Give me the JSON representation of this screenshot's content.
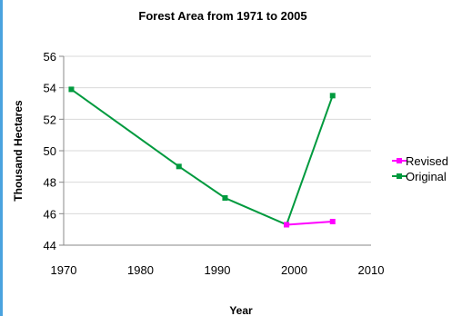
{
  "chart_data": {
    "type": "line",
    "title": "Forest Area from 1971 to 2005",
    "xlabel": "Year",
    "ylabel": "Thousand Hectares",
    "xlim": [
      1970,
      2010
    ],
    "ylim": [
      44,
      56
    ],
    "xticks": [
      1970,
      1980,
      1990,
      2000,
      2010
    ],
    "yticks": [
      44,
      46,
      48,
      50,
      52,
      54,
      56
    ],
    "grid": "horizontal",
    "legend_position": "right",
    "series": [
      {
        "name": "Revised",
        "color": "#ff00ff",
        "marker": "square",
        "x": [
          1999,
          2005
        ],
        "y": [
          45.3,
          45.5
        ]
      },
      {
        "name": "Original",
        "color": "#009a3e",
        "marker": "square",
        "x": [
          1971,
          1985,
          1991,
          1999,
          2005
        ],
        "y": [
          53.9,
          49.0,
          47.0,
          45.3,
          53.5
        ]
      }
    ]
  }
}
